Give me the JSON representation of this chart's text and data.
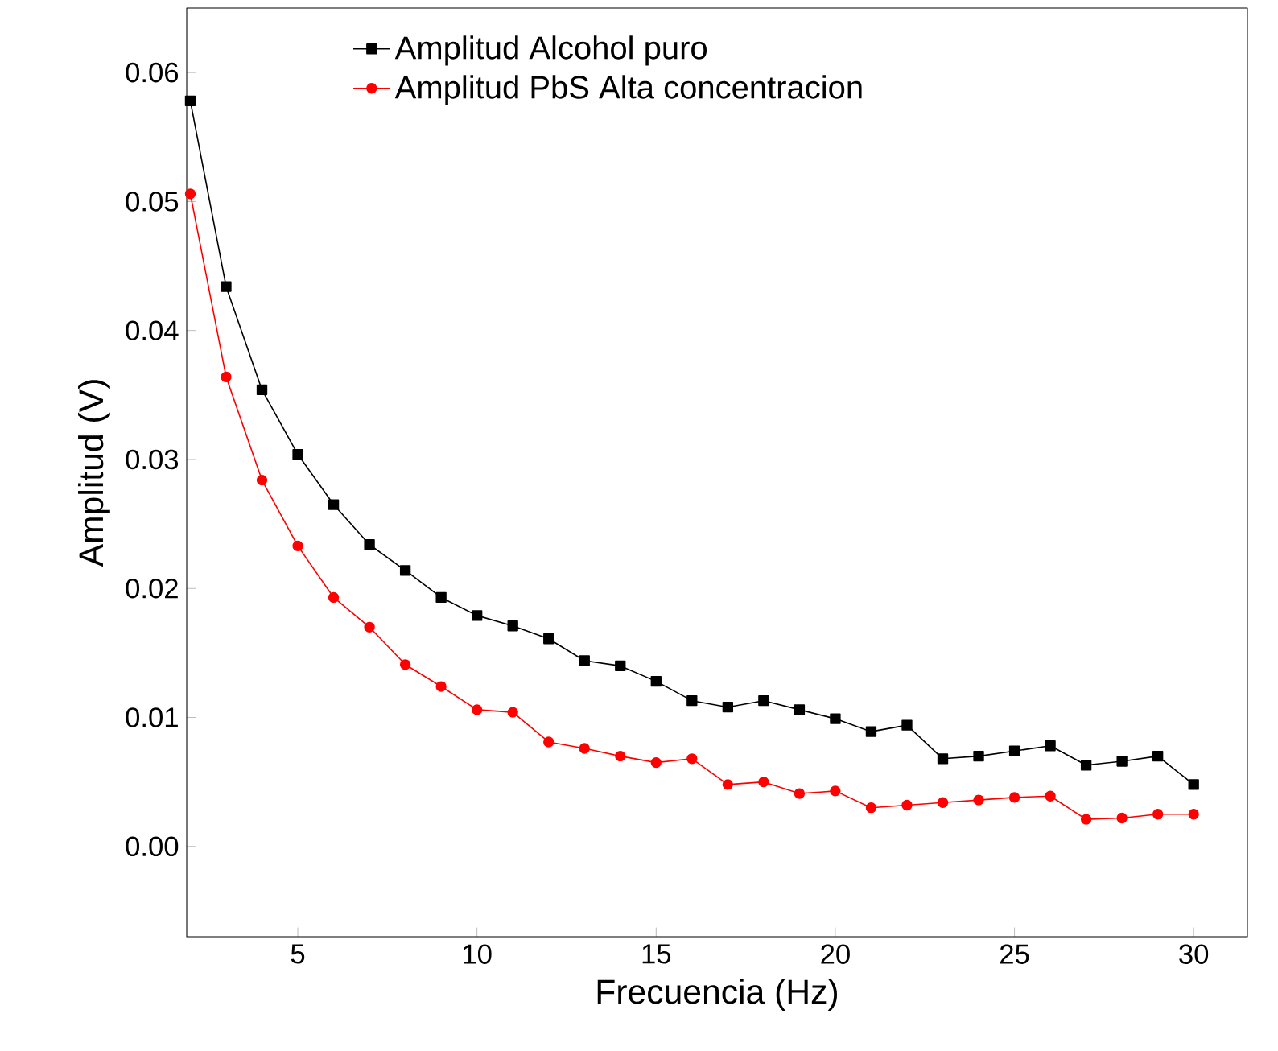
{
  "chart_data": {
    "type": "line",
    "xlabel": "Frecuencia (Hz)",
    "ylabel": "Amplitud (V)",
    "x": [
      2,
      3,
      4,
      5,
      6,
      7,
      8,
      9,
      10,
      11,
      12,
      13,
      14,
      15,
      16,
      17,
      18,
      19,
      20,
      21,
      22,
      23,
      24,
      25,
      26,
      27,
      28,
      29,
      30
    ],
    "xlim": [
      1.9,
      31.5
    ],
    "ylim": [
      -0.007,
      0.065
    ],
    "xticks": [
      5,
      10,
      15,
      20,
      25,
      30
    ],
    "yticks": [
      {
        "value": 0,
        "label": "0.00"
      },
      {
        "value": 0.01,
        "label": "0.01"
      },
      {
        "value": 0.02,
        "label": "0.02"
      },
      {
        "value": 0.03,
        "label": "0.03"
      },
      {
        "value": 0.04,
        "label": "0.04"
      },
      {
        "value": 0.05,
        "label": "0.05"
      },
      {
        "value": 0.06,
        "label": "0.06"
      }
    ],
    "legend": "top",
    "line_style": "solid",
    "series": [
      {
        "name": "Amplitud Alcohol puro",
        "color": "#000000",
        "marker": "square",
        "values": [
          0.0578,
          0.0434,
          0.0354,
          0.0304,
          0.0265,
          0.0234,
          0.0214,
          0.0193,
          0.0179,
          0.0171,
          0.0161,
          0.0144,
          0.014,
          0.0128,
          0.0113,
          0.0108,
          0.0113,
          0.0106,
          0.0099,
          0.0089,
          0.0094,
          0.0068,
          0.007,
          0.0074,
          0.0078,
          0.0063,
          0.0066,
          0.007,
          0.0048
        ]
      },
      {
        "name": "Amplitud PbS Alta concentracion",
        "color": "#ff0000",
        "marker": "circle",
        "values": [
          0.0506,
          0.0364,
          0.0284,
          0.0233,
          0.0193,
          0.017,
          0.0141,
          0.0124,
          0.0106,
          0.0104,
          0.0081,
          0.0076,
          0.007,
          0.0065,
          0.0068,
          0.0048,
          0.005,
          0.0041,
          0.0043,
          0.003,
          0.0032,
          0.0034,
          0.0036,
          0.0038,
          0.0039,
          0.0021,
          0.0022,
          0.0025,
          0.0025
        ]
      }
    ]
  }
}
